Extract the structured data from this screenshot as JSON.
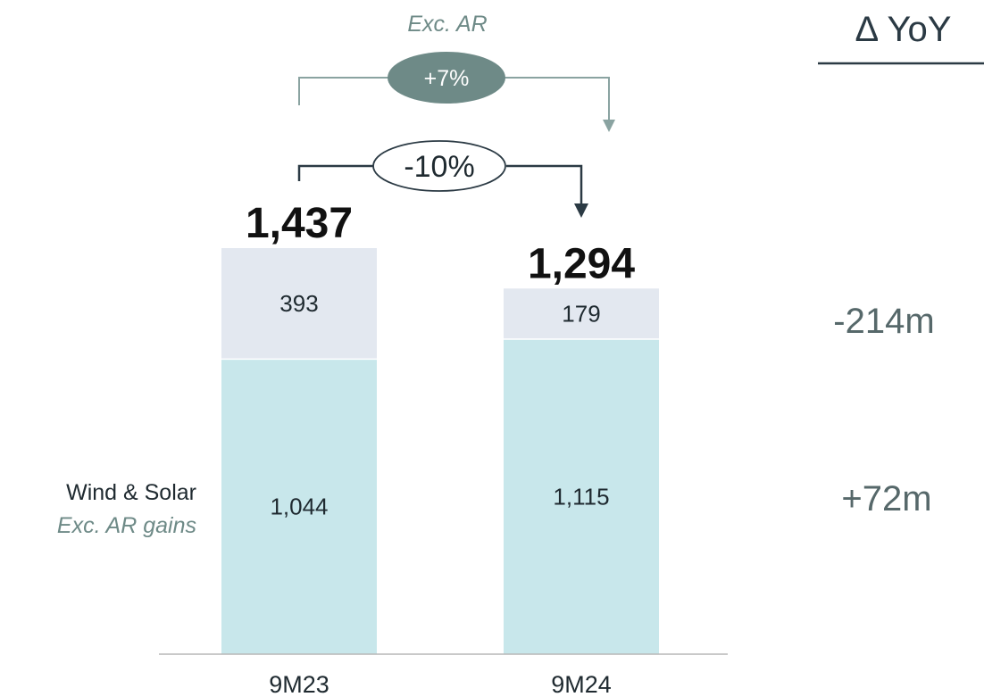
{
  "chart_data": {
    "type": "bar",
    "stacked": true,
    "categories": [
      "9M23",
      "9M24"
    ],
    "series": [
      {
        "name": "Wind & Solar Exc. AR gains",
        "values": [
          1044,
          1115
        ],
        "color": "#c8e7eb"
      },
      {
        "name": "",
        "values": [
          393,
          179
        ],
        "color": "#e3e8f0"
      }
    ],
    "value_labels": [
      [
        "1,044",
        "1,115"
      ],
      [
        "393",
        "179"
      ]
    ],
    "totals": [
      1437,
      1294
    ],
    "total_labels": [
      "1,437",
      "1,294"
    ],
    "ylim": [
      0,
      1437
    ],
    "grid": false,
    "legend": "none"
  },
  "labels": {
    "series_line1": "Wind & Solar",
    "series_line2": "Exc. AR gains"
  },
  "comparisons": {
    "exc_ar_caption": "Exc. AR",
    "exc_ar_change": "+7%",
    "total_change": "-10%"
  },
  "yoy": {
    "header": "∆ YoY",
    "rows": [
      "-214m",
      "+72m"
    ]
  },
  "colors": {
    "exc_ar": "#6e8a87",
    "dark": "#2b3a44",
    "text": "#1f2a30",
    "yoy_text": "#56686a"
  }
}
